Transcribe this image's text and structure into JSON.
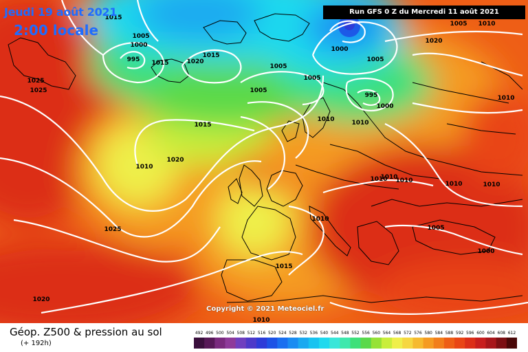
{
  "header": {
    "date": "Jeudi 19 août 2021",
    "time": "2:00 locale",
    "run": "Run GFS 0 Z du Mercredi 11 août 2021"
  },
  "copyright": "Copyright © 2021 Meteociel.fr",
  "legend": {
    "title": "Géop. Z500 & pression au sol",
    "subtitle": "(+ 192h)",
    "ticks": [
      "492",
      "496",
      "500",
      "504",
      "508",
      "512",
      "516",
      "520",
      "524",
      "528",
      "532",
      "536",
      "540",
      "544",
      "548",
      "552",
      "556",
      "560",
      "564",
      "568",
      "572",
      "576",
      "580",
      "584",
      "588",
      "592",
      "596",
      "600",
      "604",
      "608",
      "612"
    ],
    "colors": [
      "#3a0f3c",
      "#571857",
      "#7a2a7e",
      "#8e3a9a",
      "#6f3fbf",
      "#4d39c9",
      "#2d3bd8",
      "#1d52e6",
      "#1a6ff0",
      "#1a8cf2",
      "#1ba9f0",
      "#19c3f0",
      "#1fd9ee",
      "#39e6d9",
      "#3fe8ad",
      "#3ee07a",
      "#5ad94a",
      "#96e236",
      "#c9ee3b",
      "#efef4a",
      "#f6d740",
      "#f6ba2f",
      "#f59b22",
      "#f27e1b",
      "#ee5e16",
      "#e94515",
      "#dc2e18",
      "#c81e1e",
      "#a8161b",
      "#7c0f13",
      "#4a0808"
    ]
  },
  "pressure_labels": [
    {
      "value": "1015"
    },
    {
      "value": "1005"
    },
    {
      "value": "1000"
    },
    {
      "value": "995"
    },
    {
      "value": "1015"
    },
    {
      "value": "1015"
    },
    {
      "value": "1020"
    },
    {
      "value": "1025"
    },
    {
      "value": "1025"
    },
    {
      "value": "1000"
    },
    {
      "value": "1005"
    },
    {
      "value": "1005"
    },
    {
      "value": "1005"
    },
    {
      "value": "1005"
    },
    {
      "value": "1010"
    },
    {
      "value": "1010"
    },
    {
      "value": "995"
    },
    {
      "value": "1000"
    },
    {
      "value": "1005"
    },
    {
      "value": "1010"
    },
    {
      "value": "1020"
    },
    {
      "value": "1015"
    },
    {
      "value": "1010"
    },
    {
      "value": "1020"
    },
    {
      "value": "1010"
    },
    {
      "value": "1010"
    },
    {
      "value": "1010"
    },
    {
      "value": "1010"
    },
    {
      "value": "1010"
    },
    {
      "value": "1025"
    },
    {
      "value": "1010"
    },
    {
      "value": "1005"
    },
    {
      "value": "1000"
    },
    {
      "value": "1015"
    },
    {
      "value": "1020"
    },
    {
      "value": "1010"
    },
    {
      "value": "1010"
    }
  ]
}
